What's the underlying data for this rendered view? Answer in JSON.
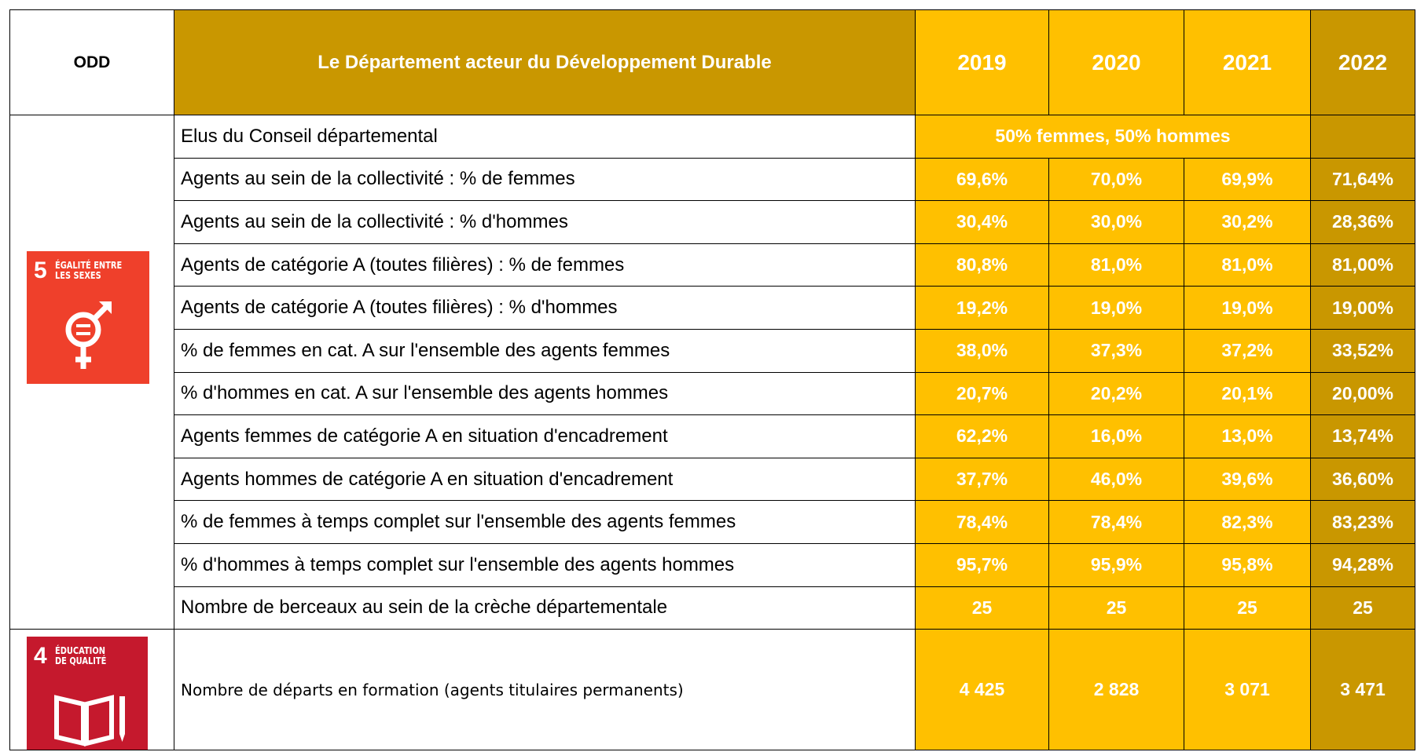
{
  "header": {
    "odd": "ODD",
    "title": "Le Département acteur du Développement Durable",
    "years": [
      "2019",
      "2020",
      "2021",
      "2022"
    ]
  },
  "groups": [
    {
      "goal": {
        "number": "5",
        "lines": [
          "ÉGALITÉ ENTRE",
          "LES SEXES"
        ]
      },
      "rows": [
        {
          "label": "Elus du Conseil départemental",
          "merged": "50% femmes, 50% hommes"
        },
        {
          "label": "Agents au sein de la collectivité : % de femmes",
          "values": [
            "69,6%",
            "70,0%",
            "69,9%",
            "71,64%"
          ]
        },
        {
          "label": "Agents au sein de la collectivité : % d'hommes",
          "values": [
            "30,4%",
            "30,0%",
            "30,2%",
            "28,36%"
          ]
        },
        {
          "label": "Agents de catégorie A (toutes filières) : % de femmes",
          "values": [
            "80,8%",
            "81,0%",
            "81,0%",
            "81,00%"
          ]
        },
        {
          "label": "Agents de catégorie A (toutes filières) : % d'hommes",
          "values": [
            "19,2%",
            "19,0%",
            "19,0%",
            "19,00%"
          ]
        },
        {
          "label": "% de femmes en cat. A sur l'ensemble des agents femmes",
          "values": [
            "38,0%",
            "37,3%",
            "37,2%",
            "33,52%"
          ]
        },
        {
          "label": "% d'hommes en cat. A sur l'ensemble des agents hommes",
          "values": [
            "20,7%",
            "20,2%",
            "20,1%",
            "20,00%"
          ]
        },
        {
          "label": "Agents femmes de catégorie A en situation d'encadrement",
          "values": [
            "62,2%",
            "16,0%",
            "13,0%",
            "13,74%"
          ]
        },
        {
          "label": "Agents hommes de catégorie A en situation d'encadrement",
          "values": [
            "37,7%",
            "46,0%",
            "39,6%",
            "36,60%"
          ]
        },
        {
          "label": "% de femmes à temps complet sur l'ensemble des agents femmes",
          "values": [
            "78,4%",
            "78,4%",
            "82,3%",
            "83,23%"
          ]
        },
        {
          "label": "% d'hommes à temps complet sur l'ensemble des agents hommes",
          "values": [
            "95,7%",
            "95,9%",
            "95,8%",
            "94,28%"
          ]
        },
        {
          "label": "Nombre de berceaux au sein de la crèche départementale",
          "values": [
            25,
            25,
            25,
            25
          ]
        }
      ]
    },
    {
      "goal": {
        "number": "4",
        "lines": [
          "ÉDUCATION",
          "DE QUALITÉ"
        ]
      },
      "rows": [
        {
          "label": "Nombre de départs en formation (agents titulaires permanents)",
          "values": [
            "4 425",
            "2 828",
            "3 071",
            "3 471"
          ]
        }
      ]
    }
  ]
}
